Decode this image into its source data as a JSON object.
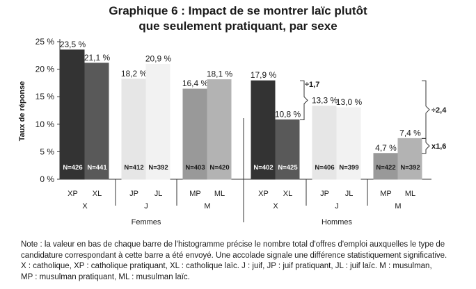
{
  "chart_data": {
    "type": "bar",
    "title": "Graphique 6 : Impact de se montrer laïc plutôt",
    "title_line2": "que seulement pratiquant, par sexe",
    "ylabel": "Taux de réponse",
    "ylim": [
      0,
      25
    ],
    "yticks": [
      "0 %",
      "5 %",
      "10 %",
      "15 %",
      "20 %",
      "25 %"
    ],
    "ytick_values": [
      0,
      5,
      10,
      15,
      20,
      25
    ],
    "grid": false,
    "legend": "none",
    "panels": [
      {
        "label": "Femmes",
        "groups": [
          {
            "label": "X",
            "bars": [
              {
                "category": "XP",
                "value": 23.5,
                "label": "23,5 %",
                "n": "N=426",
                "color": "#333333"
              },
              {
                "category": "XL",
                "value": 21.1,
                "label": "21,1 %",
                "n": "N=441",
                "color": "#595959"
              }
            ]
          },
          {
            "label": "J",
            "bars": [
              {
                "category": "JP",
                "value": 18.2,
                "label": "18,2 %",
                "n": "N=412",
                "color": "#e6e6e6"
              },
              {
                "category": "JL",
                "value": 20.9,
                "label": "20,9 %",
                "n": "N=392",
                "color": "#f2f2f2"
              }
            ]
          },
          {
            "label": "M",
            "bars": [
              {
                "category": "MP",
                "value": 16.4,
                "label": "16,4 %",
                "n": "N=403",
                "color": "#999999"
              },
              {
                "category": "ML",
                "value": 18.1,
                "label": "18,1 %",
                "n": "N=420",
                "color": "#b3b3b3"
              }
            ]
          }
        ]
      },
      {
        "label": "Hommes",
        "groups": [
          {
            "label": "X",
            "bars": [
              {
                "category": "XP",
                "value": 17.9,
                "label": "17,9 %",
                "n": "N=402",
                "color": "#333333"
              },
              {
                "category": "XL",
                "value": 10.8,
                "label": "10,8 %",
                "n": "N=425",
                "color": "#595959"
              }
            ]
          },
          {
            "label": "J",
            "bars": [
              {
                "category": "JP",
                "value": 13.3,
                "label": "13,3 %",
                "n": "N=406",
                "color": "#e6e6e6"
              },
              {
                "category": "JL",
                "value": 13.0,
                "label": "13,0 %",
                "n": "N=399",
                "color": "#f2f2f2"
              }
            ]
          },
          {
            "label": "M",
            "bars": [
              {
                "category": "MP",
                "value": 4.7,
                "label": "4,7 %",
                "n": "N=422",
                "color": "#999999"
              },
              {
                "category": "ML",
                "value": 7.4,
                "label": "7,4 %",
                "n": "N=392",
                "color": "#b3b3b3"
              }
            ]
          }
        ]
      }
    ],
    "annotations": [
      {
        "text": "÷1,7",
        "from": 17.9,
        "to": 10.8
      },
      {
        "text": "÷2,4",
        "from": 17.9,
        "to": 7.4
      },
      {
        "text": "x1,6",
        "from": 7.4,
        "to": 4.7
      }
    ]
  },
  "note": {
    "line1": "Note : la valeur en bas de chaque barre de l'histogramme précise le nombre total d'offres d'emploi auxquelles le type de",
    "line2": "candidature correspondant à cette barre a été envoyé. Une accolade signale une différence statistiquement significative.",
    "line3": "X : catholique, XP : catholique pratiquant, XL : catholique laïc. J : juif, JP : juif pratiquant, JL : juif laïc. M : musulman,",
    "line4": "MP : musulman pratiquant, ML : musulman laïc."
  }
}
